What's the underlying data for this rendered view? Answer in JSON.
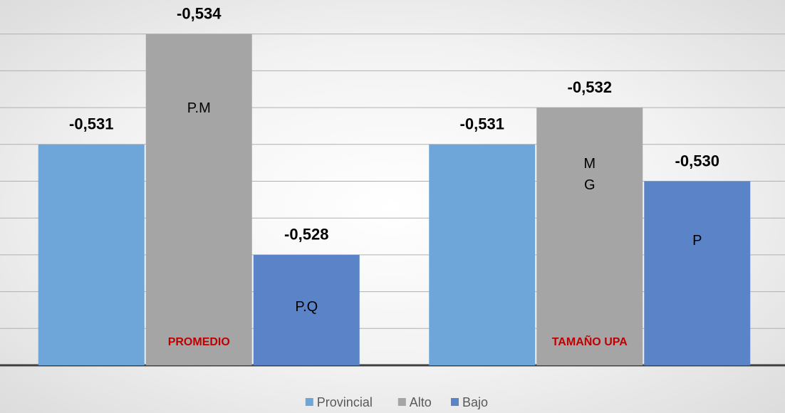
{
  "chart_data": {
    "type": "bar",
    "categories": [
      "PROMEDIO",
      "TAMAÑO UPA"
    ],
    "series": [
      {
        "name": "Provincial",
        "color": "#6fa6d9",
        "values": [
          -0.531,
          -0.531
        ],
        "value_labels": [
          "-0,531",
          "-0,531"
        ],
        "annotations": [
          null,
          null
        ]
      },
      {
        "name": "Alto",
        "color": "#a5a5a5",
        "values": [
          -0.534,
          -0.532
        ],
        "value_labels": [
          "-0,534",
          "-0,532"
        ],
        "annotations": [
          "P.M",
          "M\nG"
        ]
      },
      {
        "name": "Bajo",
        "color": "#5b84c8",
        "values": [
          -0.528,
          -0.53
        ],
        "value_labels": [
          "-0,528",
          "-0,530"
        ],
        "annotations": [
          "P.Q",
          "P"
        ]
      }
    ],
    "ylim": [
      -0.525,
      -0.535
    ],
    "yticks": [
      -0.525,
      -0.526,
      -0.527,
      -0.528,
      -0.529,
      -0.53,
      -0.531,
      -0.532,
      -0.533,
      -0.534
    ],
    "grid": true,
    "legend": "bottom",
    "category_label_color": "#c00000"
  }
}
